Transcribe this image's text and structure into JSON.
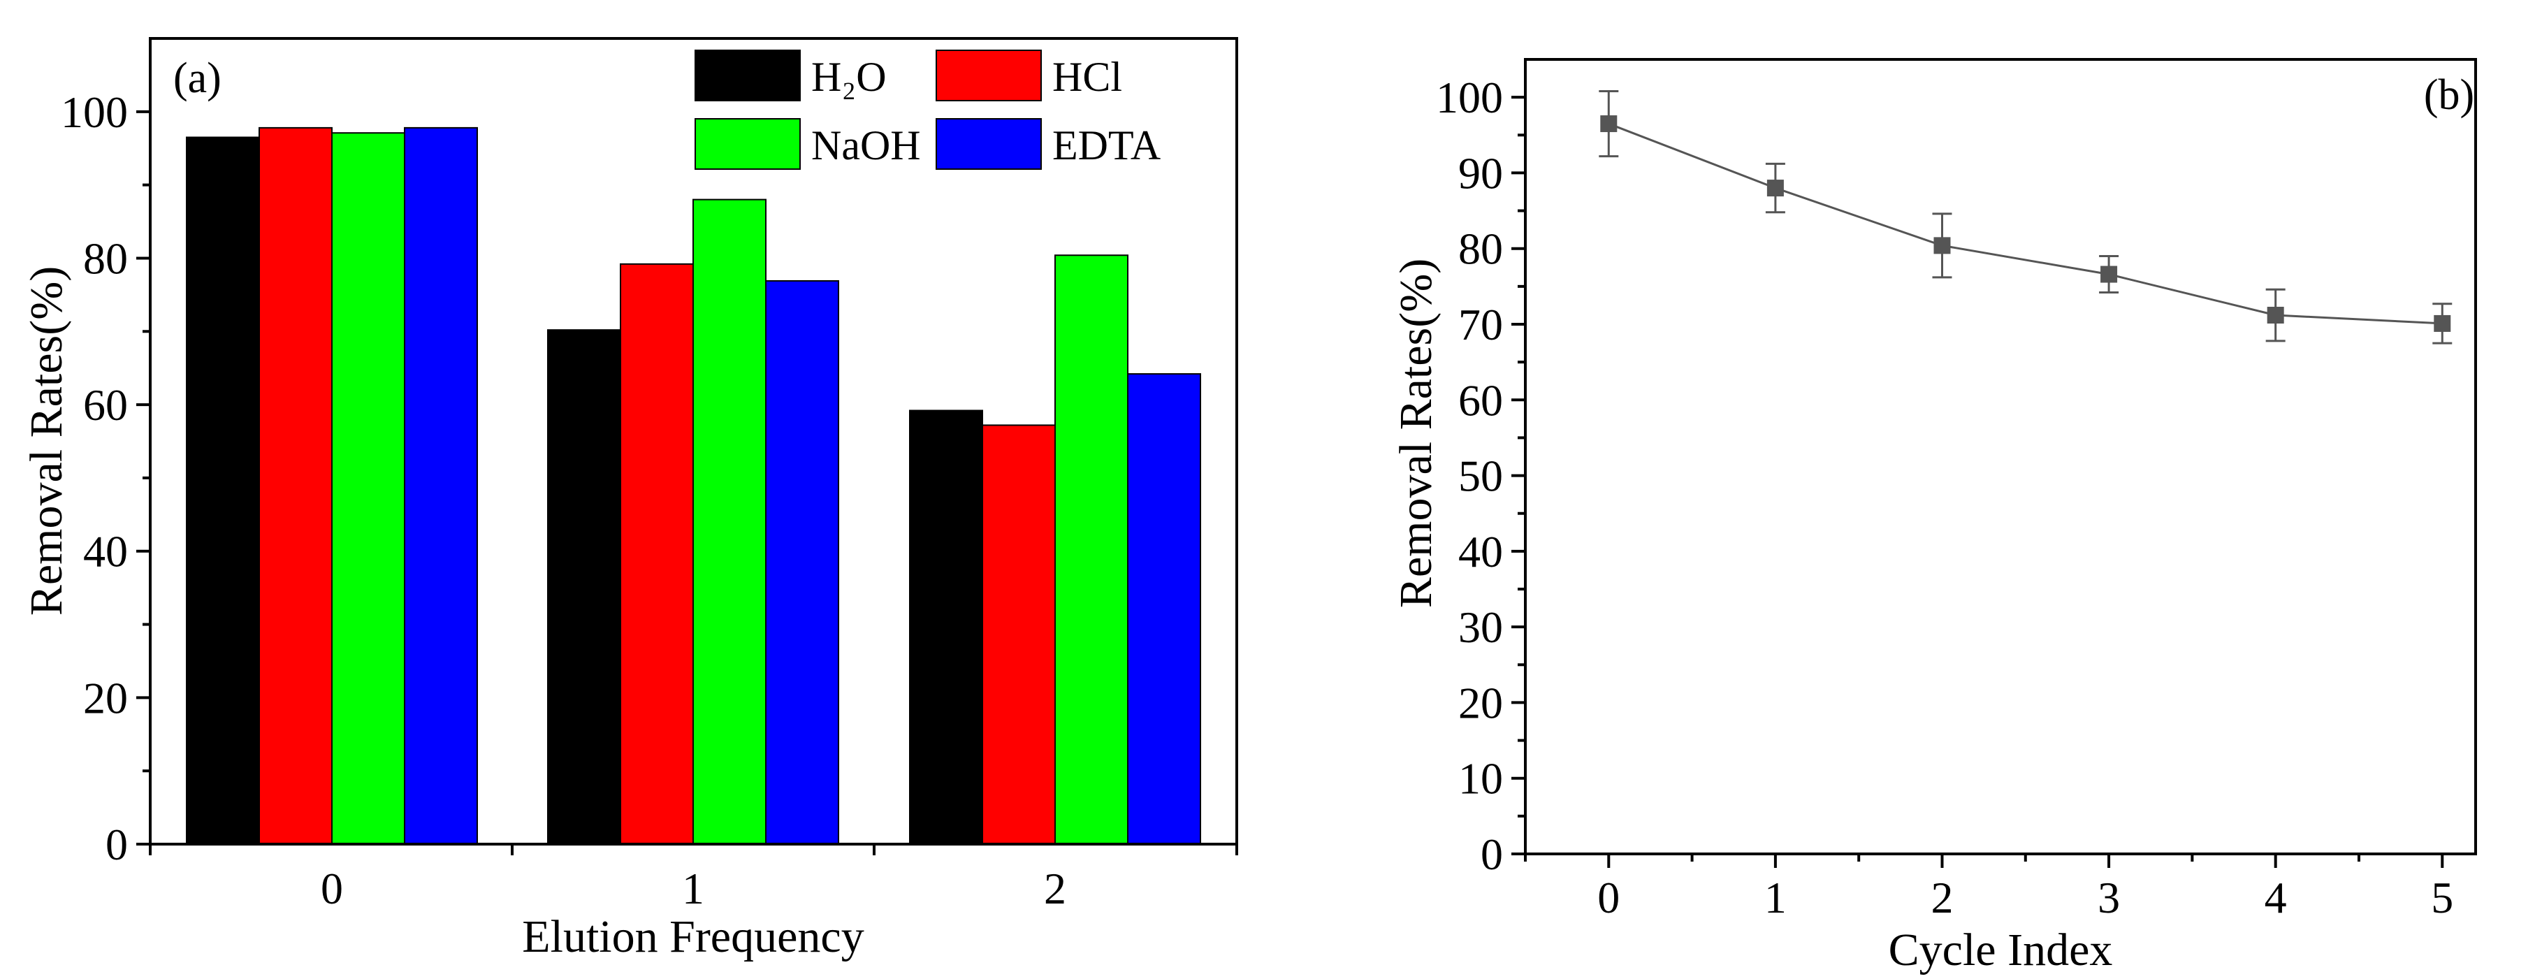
{
  "chart_data": [
    {
      "panel": "(a)",
      "type": "bar",
      "xlabel": "Elution Frequency",
      "ylabel": "Removal Rates(%)",
      "categories": [
        "0",
        "1",
        "2"
      ],
      "ylim": [
        0,
        110
      ],
      "yticks": [
        "0",
        "20",
        "40",
        "60",
        "80",
        "100"
      ],
      "series": [
        {
          "name": "H₂O",
          "color": "#000000",
          "values": [
            96.5,
            70.2,
            59.2
          ]
        },
        {
          "name": "HCl",
          "color": "#ff0000",
          "values": [
            97.8,
            79.2,
            57.2
          ]
        },
        {
          "name": "NaOH",
          "color": "#00ff00",
          "values": [
            97.1,
            88.0,
            80.4
          ]
        },
        {
          "name": "EDTA",
          "color": "#0000ff",
          "values": [
            97.8,
            76.9,
            64.2
          ]
        }
      ],
      "legend": "top-right"
    },
    {
      "panel": "(b)",
      "type": "line",
      "xlabel": "Cycle Index",
      "ylabel": "Removal Rates(%)",
      "x": [
        0,
        1,
        2,
        3,
        4,
        5
      ],
      "y": [
        96.5,
        88.0,
        80.4,
        76.6,
        71.2,
        70.1
      ],
      "error": [
        4.3,
        3.2,
        4.2,
        2.4,
        3.4,
        2.6
      ],
      "xlim": [
        -0.5,
        5.2
      ],
      "ylim": [
        0,
        105
      ],
      "xticks": [
        "0",
        "1",
        "2",
        "3",
        "4",
        "5"
      ],
      "yticks": [
        "0",
        "10",
        "20",
        "30",
        "40",
        "50",
        "60",
        "70",
        "80",
        "90",
        "100"
      ],
      "color": "#555555"
    }
  ]
}
